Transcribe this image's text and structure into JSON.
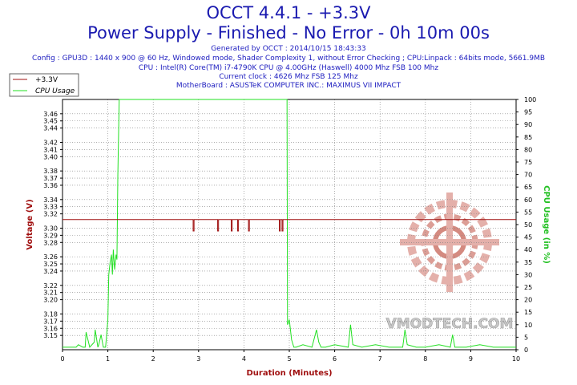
{
  "header": {
    "title": "OCCT 4.4.1 - +3.3V",
    "subtitle": "Power Supply - Finished - No Error - 0h 10m 00s",
    "info": [
      "Generated by OCCT : 2014/10/15 18:43:33",
      "Config : GPU3D : 1440 x 900 @ 60 Hz, Windowed mode, Shader Complexity 1, without Error Checking ; CPU:Linpack : 64bits mode, 5661.9MB",
      "CPU : Intel(R) Core(TM) i7-4790K CPU @ 4.00GHz (Haswell) 4000 Mhz FSB 100 Mhz",
      "Current clock : 4626 Mhz FSB 125 Mhz",
      "MotherBoard : ASUSTeK COMPUTER INC.: MAXIMUS VII IMPACT"
    ]
  },
  "watermark": "VMODTECH.COM",
  "colors": {
    "voltage": "#a01010",
    "cpu": "#22e022",
    "grid": "#808080",
    "axis": "#000000",
    "title": "#1a1ab0"
  },
  "chart_data": {
    "type": "line",
    "xlabel": "Duration (Minutes)",
    "ylabel": "Voltage (V)",
    "y2label": "CPU Usage (in %)",
    "xlim": [
      0,
      10
    ],
    "ylim": [
      3.13,
      3.48
    ],
    "y2lim": [
      0,
      100
    ],
    "legend_placement": "top-left",
    "grid": true,
    "x_ticks": [
      "0",
      "1",
      "2",
      "3",
      "4",
      "5",
      "6",
      "7",
      "8",
      "9",
      "10"
    ],
    "y_ticks": [
      "3.15",
      "3.16",
      "3.17",
      "3.18",
      "3.20",
      "3.21",
      "3.22",
      "3.24",
      "3.25",
      "3.26",
      "3.28",
      "3.29",
      "3.30",
      "3.32",
      "3.33",
      "3.34",
      "3.36",
      "3.37",
      "3.38",
      "3.40",
      "3.41",
      "3.42",
      "3.44",
      "3.45",
      "3.46"
    ],
    "y2_ticks": [
      "0",
      "5",
      "10",
      "15",
      "20",
      "25",
      "30",
      "35",
      "40",
      "45",
      "50",
      "55",
      "60",
      "65",
      "70",
      "75",
      "80",
      "85",
      "90",
      "95",
      "100"
    ],
    "series": [
      {
        "name": "+3.3V",
        "axis": "left",
        "x": [
          0,
          2.88,
          2.88,
          2.9,
          2.9,
          3.42,
          3.42,
          3.44,
          3.44,
          3.72,
          3.72,
          3.74,
          3.74,
          3.86,
          3.86,
          3.88,
          3.88,
          4.1,
          4.1,
          4.12,
          4.12,
          4.78,
          4.78,
          4.8,
          4.8,
          4.84,
          4.84,
          4.86,
          4.86,
          10
        ],
        "y": [
          3.312,
          3.312,
          3.296,
          3.296,
          3.312,
          3.312,
          3.296,
          3.296,
          3.312,
          3.312,
          3.296,
          3.296,
          3.312,
          3.312,
          3.296,
          3.296,
          3.312,
          3.312,
          3.296,
          3.296,
          3.312,
          3.312,
          3.296,
          3.296,
          3.312,
          3.312,
          3.296,
          3.296,
          3.312,
          3.312
        ]
      },
      {
        "name": "CPU Usage",
        "axis": "right",
        "x": [
          0,
          0.3,
          0.35,
          0.45,
          0.5,
          0.52,
          0.6,
          0.7,
          0.72,
          0.78,
          0.8,
          0.85,
          0.9,
          0.95,
          1.0,
          1.02,
          1.05,
          1.08,
          1.1,
          1.12,
          1.15,
          1.18,
          1.2,
          1.22,
          1.25,
          1.3,
          3.0,
          4.95,
          4.96,
          5.0,
          5.05,
          5.1,
          5.15,
          5.3,
          5.5,
          5.6,
          5.65,
          5.7,
          5.8,
          6.0,
          6.3,
          6.35,
          6.4,
          6.6,
          6.9,
          7.2,
          7.5,
          7.55,
          7.6,
          7.8,
          8.0,
          8.3,
          8.55,
          8.6,
          8.65,
          8.9,
          9.2,
          9.5,
          9.8,
          10
        ],
        "y": [
          1,
          1,
          2,
          1,
          1,
          7,
          1,
          3,
          8,
          1,
          2,
          6,
          1,
          1,
          12,
          30,
          35,
          38,
          30,
          40,
          32,
          38,
          36,
          70,
          100,
          100,
          100,
          100,
          10,
          12,
          4,
          1,
          1,
          2,
          1,
          8,
          3,
          1,
          1,
          2,
          1,
          10,
          2,
          1,
          2,
          1,
          1,
          8,
          2,
          1,
          1,
          2,
          1,
          6,
          1,
          1,
          2,
          1,
          1,
          1
        ]
      }
    ]
  }
}
